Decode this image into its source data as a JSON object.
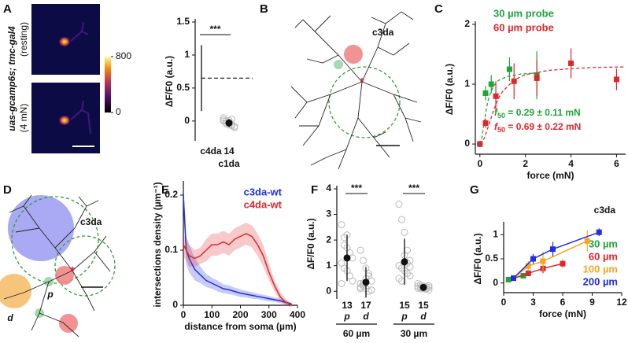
{
  "panels": [
    "A",
    "B",
    "C",
    "D",
    "E",
    "F",
    "G"
  ],
  "image": {
    "genotype": "uas-gcamp6s; tmc-gal4",
    "conditions": [
      "(resting)",
      "(4 mN)"
    ],
    "colorbar": {
      "ylim": [
        0,
        800
      ],
      "yticks": [
        800,
        0
      ]
    }
  },
  "diagrams": [
    {
      "label": "c3da"
    },
    {
      "label": "c3da",
      "dendrite_labels": [
        "p",
        "d"
      ]
    }
  ],
  "chart_data": [
    {
      "type": "dot",
      "ylabel": "ΔF/F0 (a.u.)",
      "categories": [
        "c4da",
        "c1da"
      ],
      "style": [
        "range",
        "dot"
      ],
      "values": [
        0.65,
        -0.03
      ],
      "errors": [
        0.5,
        0.06
      ],
      "n": [
        null,
        14
      ],
      "significance": [
        "***"
      ],
      "points": [
        null,
        [
          0.05,
          0,
          -0.02,
          -0.05,
          -0.08,
          0.02,
          -0.03,
          -0.06,
          0.03,
          -0.1,
          0,
          -0.04,
          0.01,
          -0.07
        ]
      ],
      "ylim": [
        -0.3,
        1.5
      ],
      "yticks": [
        0,
        0.5,
        1,
        1.5
      ]
    },
    {
      "type": "line",
      "ylabel": "ΔF/F0 (a.u.)",
      "xlabel": "force (mN)",
      "marker": "square",
      "lines": false,
      "legend": "upper left",
      "xlim": [
        -0.2,
        6.4
      ],
      "xticks": [
        0,
        2,
        4,
        6
      ],
      "ylim": [
        -0.17,
        2
      ],
      "yticks": [
        0,
        1,
        2
      ],
      "series": [
        {
          "name": "30 µm probe",
          "color": "#1fa33a",
          "x": [
            0,
            0.25,
            0.5,
            1.3,
            2.5
          ],
          "values": [
            0,
            0.85,
            1.0,
            1.25,
            1.15
          ],
          "errors": [
            0.05,
            0.12,
            0.15,
            0.2,
            0.4
          ],
          "fit_x": [
            0,
            0.1,
            0.2,
            0.3,
            0.4,
            0.6,
            0.8,
            1.2,
            1.8,
            2.6
          ],
          "fit_values": [
            0,
            0.13,
            0.39,
            0.62,
            0.79,
            0.97,
            1.06,
            1.13,
            1.17,
            1.19
          ]
        },
        {
          "name": "60 µm probe",
          "color": "#e0262b",
          "x": [
            0,
            0.25,
            0.7,
            1.5,
            2.5,
            4,
            6
          ],
          "values": [
            0,
            0.35,
            0.8,
            1.05,
            1.1,
            1.35,
            1.08
          ],
          "errors": [
            0.05,
            0.08,
            0.25,
            0.3,
            0.3,
            0.25,
            0.18
          ],
          "fit_x": [
            0,
            0.2,
            0.4,
            0.6,
            0.8,
            1,
            1.5,
            2,
            3,
            4,
            5,
            6.4
          ],
          "fit_values": [
            0,
            0.1,
            0.33,
            0.56,
            0.75,
            0.88,
            1.07,
            1.16,
            1.23,
            1.26,
            1.28,
            1.29
          ]
        }
      ],
      "annotations": [
        {
          "symbol": "f",
          "sub": "50",
          "text": " = 0.29 ± 0.11 mN",
          "color": "#1fa33a"
        },
        {
          "symbol": "f",
          "sub": "50",
          "text": " = 0.69 ± 0.22 mN",
          "color": "#e0262b"
        }
      ]
    },
    {
      "type": "line",
      "ylabel": "intersections density (µm⁻¹)",
      "xlabel": "distance from soma (µm)",
      "band": true,
      "legend": "upper right",
      "xlim": [
        0,
        400
      ],
      "xticks": [
        0,
        100,
        200,
        300,
        400
      ],
      "ylim": [
        0,
        0.22
      ],
      "yticks": [
        0,
        0.1,
        0.2
      ],
      "series": [
        {
          "name": "c3da-wt",
          "color": "#1f2fe0",
          "x": [
            0,
            10,
            20,
            40,
            60,
            80,
            100,
            120,
            140,
            160,
            180,
            200,
            220,
            240,
            260,
            280,
            300,
            320,
            340,
            360,
            380
          ],
          "values": [
            0.2,
            0.1,
            0.085,
            0.065,
            0.055,
            0.045,
            0.04,
            0.035,
            0.03,
            0.028,
            0.025,
            0.022,
            0.02,
            0.018,
            0.016,
            0.014,
            0.012,
            0.01,
            0.008,
            0.005,
            0.002
          ],
          "errors": [
            0.02,
            0.025,
            0.025,
            0.02,
            0.015,
            0.012,
            0.01,
            0.01,
            0.008,
            0.008,
            0.007,
            0.007,
            0.006,
            0.006,
            0.005,
            0.005,
            0.005,
            0.004,
            0.004,
            0.003,
            0.002
          ]
        },
        {
          "name": "c4da-wt",
          "color": "#e0262b",
          "x": [
            0,
            10,
            20,
            40,
            60,
            80,
            100,
            120,
            140,
            160,
            180,
            200,
            220,
            240,
            260,
            280,
            300,
            320,
            340,
            360,
            380
          ],
          "values": [
            0.11,
            0.1,
            0.09,
            0.085,
            0.09,
            0.1,
            0.11,
            0.11,
            0.115,
            0.11,
            0.12,
            0.125,
            0.13,
            0.125,
            0.11,
            0.09,
            0.06,
            0.035,
            0.015,
            0.005,
            0
          ],
          "errors": [
            0.02,
            0.02,
            0.02,
            0.015,
            0.015,
            0.02,
            0.02,
            0.02,
            0.02,
            0.02,
            0.02,
            0.02,
            0.02,
            0.02,
            0.02,
            0.02,
            0.015,
            0.01,
            0.008,
            0.005,
            0.003
          ]
        }
      ]
    },
    {
      "type": "dot",
      "ylabel": "ΔF/F0 (a.u.)",
      "categories": [
        "p",
        "d",
        "p",
        "d"
      ],
      "groups": [
        "60 µm",
        "30 µm"
      ],
      "significance": [
        "***",
        "***"
      ],
      "values": [
        1.3,
        0.35,
        1.15,
        0.15
      ],
      "errors": [
        0.9,
        0.6,
        0.9,
        0.1
      ],
      "n": [
        13,
        17,
        15,
        15
      ],
      "points": [
        [
          2.6,
          2.1,
          1.7,
          1.5,
          1.3,
          1.1,
          0.9,
          0.8,
          0.6,
          0.4,
          0.3,
          1.8,
          2.2
        ],
        [
          1.6,
          1.2,
          0.9,
          0.6,
          0.4,
          0.3,
          0.2,
          0.1,
          0,
          0.05,
          0.15,
          0.25,
          0.5,
          0.7,
          0.05,
          0.1,
          0.3
        ],
        [
          3.4,
          2.8,
          2.3,
          1.6,
          1.2,
          1.0,
          0.9,
          0.8,
          0.7,
          0.6,
          0.5,
          0.4,
          1.4,
          1.1,
          0.95
        ],
        [
          0.3,
          0.25,
          0.2,
          0.18,
          0.15,
          0.12,
          0.1,
          0.1,
          0.08,
          0.05,
          0.2,
          0.15,
          0.12,
          0.1,
          0.22
        ]
      ],
      "ylim": [
        -0.3,
        4
      ],
      "yticks": [
        0,
        1,
        2,
        3,
        4
      ]
    },
    {
      "type": "line",
      "ylabel": "ΔF/F0 (a.u.)",
      "xlabel": "force (mN)",
      "marker": "square",
      "lines": true,
      "legend": "lower right",
      "xlim": [
        0,
        12
      ],
      "xticks": [
        0,
        3,
        6,
        9,
        12
      ],
      "ylim": [
        -0.2,
        1.2
      ],
      "yticks": [
        0,
        0.5,
        1
      ],
      "series": [
        {
          "name": "30 µm",
          "color": "#1fa33a",
          "x": [
            0.5,
            1,
            2
          ],
          "values": [
            0.07,
            0.1,
            0.15
          ],
          "errors": [
            0.03,
            0.03,
            0.04
          ]
        },
        {
          "name": "60 µm",
          "color": "#e0262b",
          "x": [
            1,
            2.5,
            4,
            6
          ],
          "values": [
            0.1,
            0.2,
            0.3,
            0.4
          ],
          "errors": [
            0.04,
            0.06,
            0.1,
            0.08
          ]
        },
        {
          "name": "100 µm",
          "color": "#f5a623",
          "x": [
            1,
            2.5,
            4,
            8.5
          ],
          "values": [
            0.1,
            0.35,
            0.45,
            0.87
          ],
          "errors": [
            0.05,
            0.1,
            0.2,
            0.22
          ]
        },
        {
          "name": "200 µm",
          "color": "#1f2fe0",
          "x": [
            1,
            3,
            5,
            9.7
          ],
          "values": [
            0.1,
            0.5,
            0.7,
            1.05
          ],
          "errors": [
            0.04,
            0.1,
            0.15,
            0.08
          ]
        }
      ],
      "annotations": [
        {
          "text": "c3da"
        }
      ]
    }
  ]
}
